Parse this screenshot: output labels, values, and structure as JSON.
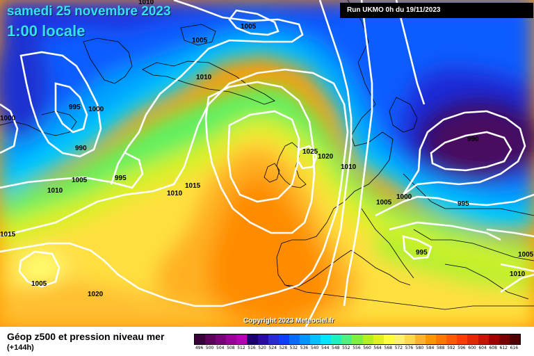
{
  "map_header": {
    "date_line": "samedi 25 novembre 2023",
    "time_line": "1:00 locale",
    "run_info": "Run UKMO 0h du 19/11/2023"
  },
  "copyright": "Copyright 2023 Meteociel.fr",
  "legend": {
    "title": "Géop z500 et pression niveau mer",
    "subtitle": "(+144h)",
    "scale_values": [
      "496",
      "500",
      "504",
      "508",
      "512",
      "516",
      "520",
      "524",
      "528",
      "532",
      "536",
      "540",
      "544",
      "548",
      "552",
      "556",
      "560",
      "564",
      "568",
      "572",
      "576",
      "580",
      "584",
      "588",
      "592",
      "596",
      "600",
      "604",
      "608",
      "612",
      "616"
    ],
    "scale_colors": [
      "#3a003a",
      "#5c005c",
      "#7a007a",
      "#9a009a",
      "#b400b4",
      "#1c0070",
      "#2a0aa0",
      "#2a2ad0",
      "#1040ff",
      "#0a6cff",
      "#0096ff",
      "#00c0ff",
      "#00e6ff",
      "#20f0c0",
      "#50f080",
      "#80f040",
      "#b4f020",
      "#e0f020",
      "#ffff40",
      "#fff070",
      "#ffd850",
      "#ffb430",
      "#ff9600",
      "#ff7800",
      "#ff5a00",
      "#ff3c00",
      "#e62800",
      "#c81400",
      "#a00000",
      "#780000",
      "#500000"
    ]
  },
  "isobar_labels": [
    "1010",
    "1005",
    "1005",
    "1010",
    "995",
    "1000",
    "990",
    "1000",
    "1005",
    "995",
    "1010",
    "1015",
    "1015",
    "1010",
    "1005",
    "1020",
    "1025",
    "1020",
    "1010",
    "1005",
    "1000",
    "990",
    "995",
    "995",
    "1005",
    "1010"
  ]
}
